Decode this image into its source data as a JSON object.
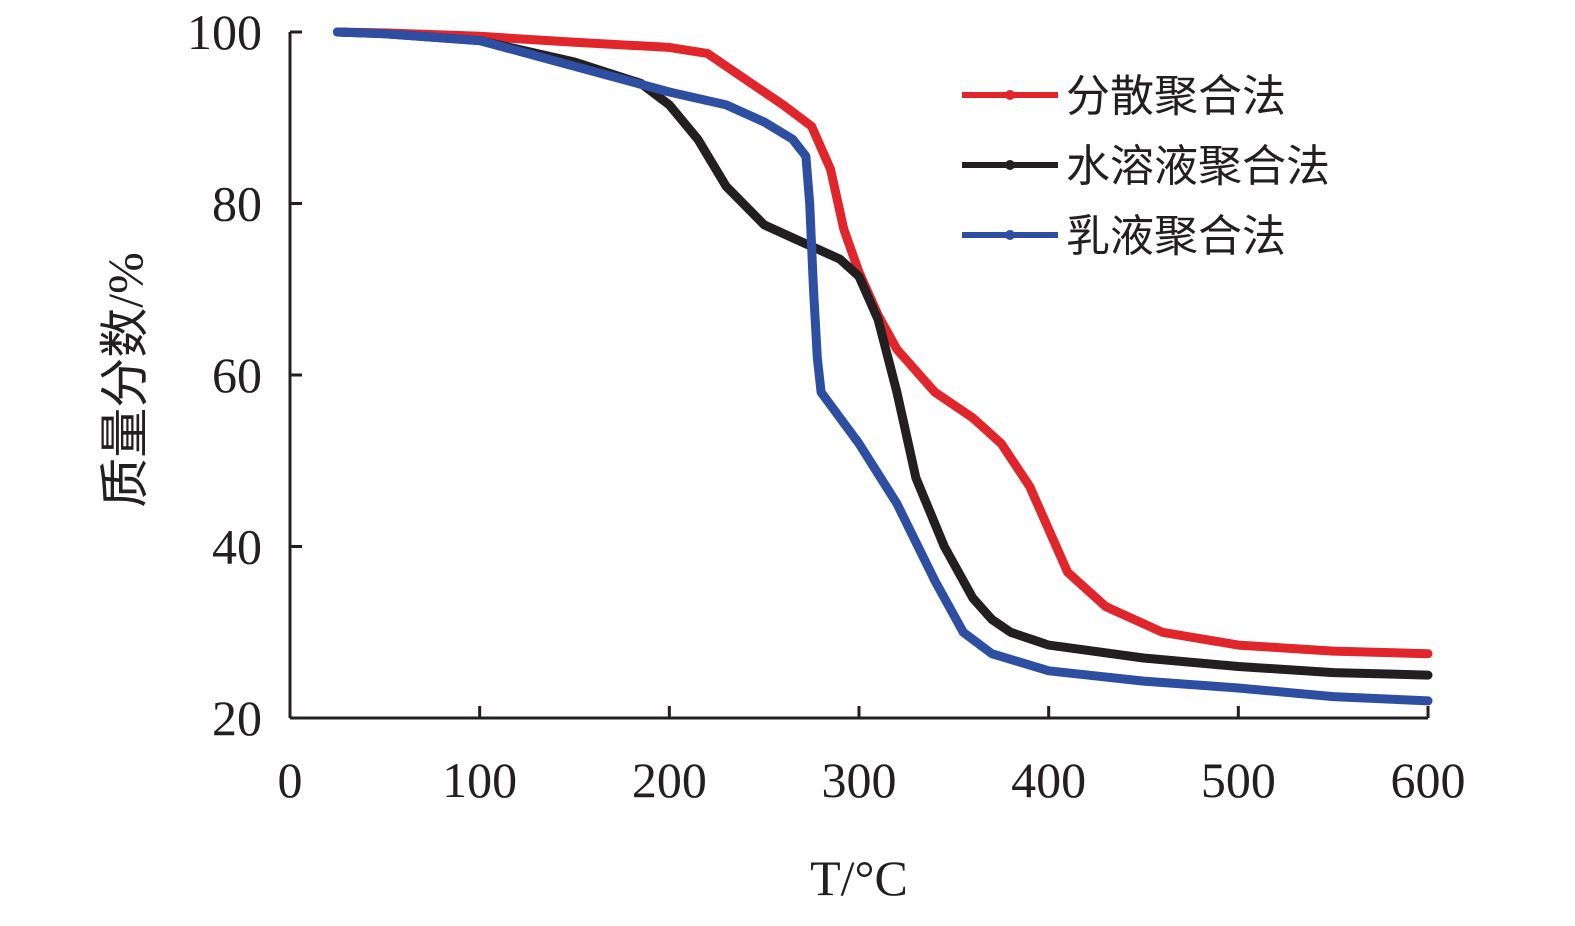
{
  "chart_data": {
    "type": "line",
    "title": "",
    "xlabel": "T/°C",
    "ylabel": "质量分数/%",
    "xlim": [
      0,
      600
    ],
    "ylim": [
      20,
      100
    ],
    "xticks": [
      0,
      100,
      200,
      300,
      400,
      500,
      600
    ],
    "yticks": [
      20,
      40,
      60,
      80,
      100
    ],
    "grid": false,
    "legend_position": "top-right",
    "series": [
      {
        "name": "分散聚合法",
        "color": "#e0262b",
        "x": [
          25,
          50,
          100,
          150,
          200,
          220,
          240,
          260,
          275,
          285,
          292,
          300,
          310,
          320,
          340,
          360,
          375,
          390,
          400,
          410,
          430,
          460,
          500,
          550,
          600
        ],
        "y": [
          100,
          99.9,
          99.5,
          98.8,
          98.2,
          97.5,
          94.5,
          91.5,
          89,
          84,
          77,
          72,
          67,
          63,
          58,
          55,
          52,
          47,
          42,
          37,
          33,
          30,
          28.5,
          27.8,
          27.5
        ]
      },
      {
        "name": "水溶液聚合法",
        "color": "#231f20",
        "x": [
          25,
          50,
          100,
          150,
          185,
          200,
          215,
          230,
          250,
          270,
          290,
          300,
          310,
          320,
          330,
          345,
          360,
          370,
          380,
          400,
          450,
          500,
          550,
          600
        ],
        "y": [
          100,
          99.8,
          99,
          96.5,
          94,
          91.5,
          87.5,
          82,
          77.5,
          75.5,
          73.5,
          71.5,
          66.5,
          58,
          48,
          40,
          34,
          31.5,
          30,
          28.5,
          27,
          26,
          25.3,
          25
        ]
      },
      {
        "name": "乳液聚合法",
        "color": "#2e4ea2",
        "x": [
          25,
          50,
          100,
          150,
          200,
          230,
          250,
          265,
          272,
          274,
          276,
          278,
          280,
          285,
          300,
          320,
          340,
          355,
          370,
          400,
          450,
          500,
          550,
          600
        ],
        "y": [
          100,
          99.8,
          99,
          96,
          93,
          91.5,
          89.5,
          87.5,
          85.5,
          80,
          70,
          62,
          58,
          56.5,
          52,
          45,
          36,
          30,
          27.5,
          25.5,
          24.3,
          23.5,
          22.5,
          22
        ]
      }
    ]
  }
}
